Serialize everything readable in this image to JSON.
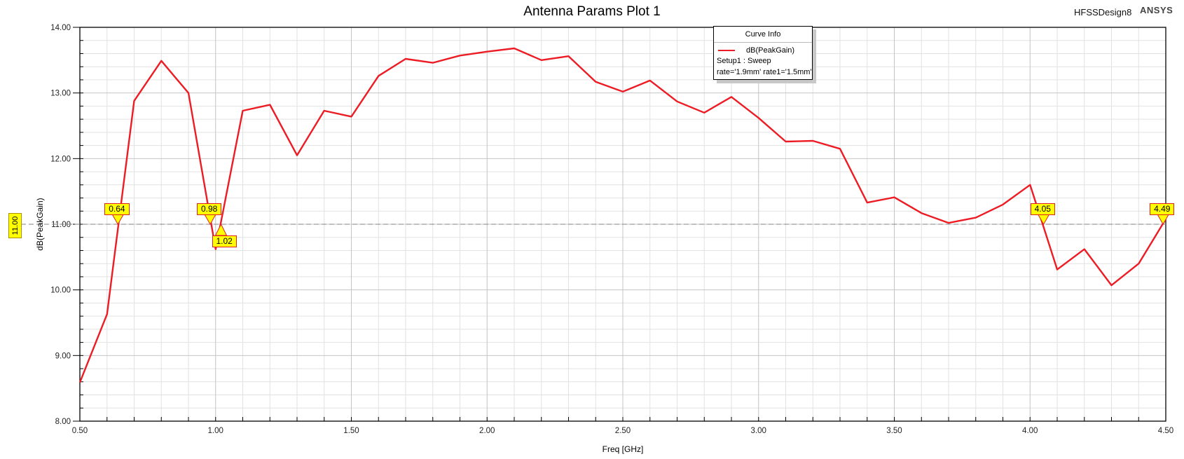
{
  "header": {
    "title": "Antenna Params Plot 1",
    "design_name": "HFSSDesign8",
    "brand": "ANSYS"
  },
  "legend": {
    "title": "Curve Info",
    "series_label": "dB(PeakGain)",
    "setup": "Setup1 : Sweep",
    "params": "rate='1.9mm' rate1='1.5mm'",
    "line_color": "#ed1c24"
  },
  "axes": {
    "xlabel": "Freq [GHz]",
    "ylabel": "dB(PeakGain)",
    "x_ticks": [
      "0.50",
      "1.00",
      "1.50",
      "2.00",
      "2.50",
      "3.00",
      "3.50",
      "4.00",
      "4.50"
    ],
    "y_ticks": [
      "14.00",
      "13.00",
      "12.00",
      "11.00",
      "10.00",
      "9.00",
      "8.00"
    ]
  },
  "reference_line": {
    "y_value_label": "11.00",
    "y": 11.0
  },
  "markers": [
    {
      "label": "0.64",
      "x": 0.64,
      "dir": "down"
    },
    {
      "label": "0.98",
      "x": 0.98,
      "dir": "down"
    },
    {
      "label": "1.02",
      "x": 1.02,
      "dir": "up"
    },
    {
      "label": "4.05",
      "x": 4.05,
      "dir": "down"
    },
    {
      "label": "4.49",
      "x": 4.49,
      "dir": "down"
    }
  ],
  "chart_data": {
    "type": "line",
    "title": "Antenna Params Plot 1",
    "xlabel": "Freq [GHz]",
    "ylabel": "dB(PeakGain)",
    "xlim": [
      0.5,
      4.5
    ],
    "ylim": [
      8.0,
      14.0
    ],
    "grid": true,
    "legend_position": "top-center-right",
    "x": [
      0.5,
      0.6,
      0.7,
      0.8,
      0.9,
      1.0,
      1.1,
      1.2,
      1.3,
      1.4,
      1.5,
      1.6,
      1.7,
      1.8,
      1.9,
      2.0,
      2.1,
      2.2,
      2.3,
      2.4,
      2.5,
      2.6,
      2.7,
      2.8,
      2.9,
      3.0,
      3.1,
      3.2,
      3.3,
      3.4,
      3.5,
      3.6,
      3.7,
      3.8,
      3.9,
      4.0,
      4.1,
      4.2,
      4.3,
      4.4,
      4.5
    ],
    "series": [
      {
        "name": "dB(PeakGain) Setup1 : Sweep rate='1.9mm' rate1='1.5mm'",
        "color": "#ed1c24",
        "values": [
          8.59,
          9.63,
          12.88,
          13.49,
          13.0,
          10.62,
          12.73,
          12.82,
          12.05,
          12.73,
          12.64,
          13.26,
          13.52,
          13.46,
          13.57,
          13.63,
          13.68,
          13.5,
          13.56,
          13.17,
          13.02,
          13.19,
          12.87,
          12.7,
          12.94,
          12.62,
          12.26,
          12.27,
          12.15,
          11.33,
          11.41,
          11.17,
          11.02,
          11.1,
          11.3,
          11.6,
          10.31,
          10.62,
          10.07,
          10.4,
          11.08
        ]
      }
    ],
    "annotations": [
      {
        "type": "hline",
        "y": 11.0,
        "label": "11.00"
      },
      {
        "type": "marker",
        "x": 0.64,
        "label": "0.64"
      },
      {
        "type": "marker",
        "x": 0.98,
        "label": "0.98"
      },
      {
        "type": "marker",
        "x": 1.02,
        "label": "1.02"
      },
      {
        "type": "marker",
        "x": 4.05,
        "label": "4.05"
      },
      {
        "type": "marker",
        "x": 4.49,
        "label": "4.49"
      }
    ]
  }
}
